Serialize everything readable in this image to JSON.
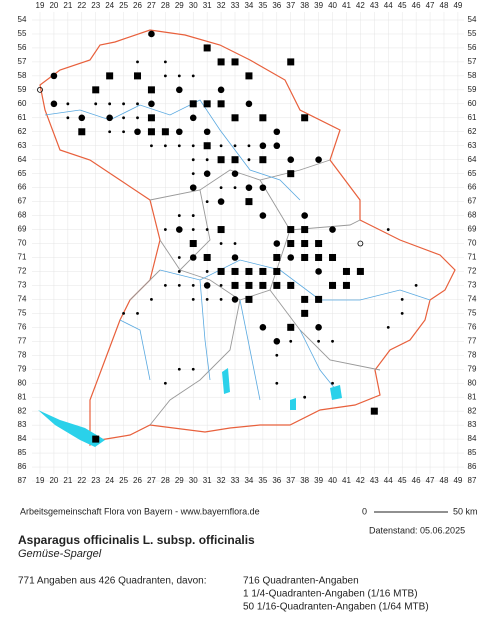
{
  "map": {
    "columns": [
      19,
      20,
      21,
      22,
      23,
      24,
      25,
      26,
      27,
      28,
      29,
      30,
      31,
      32,
      33,
      34,
      35,
      36,
      37,
      38,
      39,
      40,
      41,
      42,
      43,
      44,
      45,
      46,
      47,
      48,
      49
    ],
    "rows": [
      54,
      55,
      56,
      57,
      58,
      59,
      60,
      61,
      62,
      63,
      64,
      65,
      66,
      67,
      68,
      69,
      70,
      71,
      72,
      73,
      74,
      75,
      76,
      77,
      78,
      79,
      80,
      81,
      82,
      83,
      84,
      85,
      86,
      87
    ],
    "squares": [
      [
        31,
        56
      ],
      [
        32,
        57
      ],
      [
        33,
        57
      ],
      [
        34,
        58
      ],
      [
        37,
        57
      ],
      [
        23,
        59
      ],
      [
        24,
        58
      ],
      [
        26,
        58
      ],
      [
        27,
        59
      ],
      [
        28,
        62
      ],
      [
        30,
        60
      ],
      [
        31,
        60
      ],
      [
        32,
        60
      ],
      [
        33,
        61
      ],
      [
        35,
        61
      ],
      [
        38,
        61
      ],
      [
        22,
        62
      ],
      [
        27,
        61
      ],
      [
        27,
        62
      ],
      [
        31,
        63
      ],
      [
        32,
        64
      ],
      [
        33,
        64
      ],
      [
        35,
        64
      ],
      [
        37,
        65
      ],
      [
        34,
        67
      ],
      [
        32,
        69
      ],
      [
        37,
        69
      ],
      [
        38,
        69
      ],
      [
        37,
        70
      ],
      [
        38,
        70
      ],
      [
        39,
        70
      ],
      [
        38,
        71
      ],
      [
        39,
        71
      ],
      [
        40,
        71
      ],
      [
        36,
        71
      ],
      [
        33,
        72
      ],
      [
        34,
        72
      ],
      [
        35,
        72
      ],
      [
        36,
        72
      ],
      [
        33,
        73
      ],
      [
        34,
        73
      ],
      [
        35,
        73
      ],
      [
        34,
        74
      ],
      [
        36,
        73
      ],
      [
        37,
        73
      ],
      [
        40,
        73
      ],
      [
        41,
        73
      ],
      [
        42,
        72
      ],
      [
        38,
        74
      ],
      [
        39,
        74
      ],
      [
        38,
        75
      ],
      [
        37,
        76
      ],
      [
        43,
        82
      ],
      [
        23,
        84
      ],
      [
        41,
        72
      ],
      [
        30,
        70
      ],
      [
        31,
        71
      ],
      [
        32,
        72
      ]
    ],
    "dots": [
      [
        27,
        55
      ],
      [
        20,
        58
      ],
      [
        20,
        60
      ],
      [
        22,
        61
      ],
      [
        29,
        59
      ],
      [
        29,
        62
      ],
      [
        26,
        62
      ],
      [
        27,
        60
      ],
      [
        24,
        61
      ],
      [
        30,
        61
      ],
      [
        31,
        62
      ],
      [
        32,
        59
      ],
      [
        34,
        60
      ],
      [
        35,
        63
      ],
      [
        36,
        62
      ],
      [
        31,
        65
      ],
      [
        33,
        65
      ],
      [
        34,
        66
      ],
      [
        35,
        66
      ],
      [
        36,
        63
      ],
      [
        37,
        64
      ],
      [
        39,
        64
      ],
      [
        30,
        66
      ],
      [
        32,
        67
      ],
      [
        35,
        68
      ],
      [
        38,
        68
      ],
      [
        36,
        70
      ],
      [
        30,
        71
      ],
      [
        31,
        73
      ],
      [
        33,
        71
      ],
      [
        37,
        71
      ],
      [
        40,
        69
      ],
      [
        41,
        72
      ],
      [
        39,
        72
      ],
      [
        36,
        77
      ],
      [
        35,
        76
      ],
      [
        33,
        74
      ],
      [
        29,
        69
      ],
      [
        39,
        76
      ]
    ],
    "small_dots": [
      [
        26,
        57
      ],
      [
        28,
        57
      ],
      [
        28,
        58
      ],
      [
        29,
        58
      ],
      [
        30,
        58
      ],
      [
        21,
        60
      ],
      [
        21,
        61
      ],
      [
        22,
        62
      ],
      [
        23,
        60
      ],
      [
        24,
        60
      ],
      [
        24,
        62
      ],
      [
        25,
        60
      ],
      [
        25,
        61
      ],
      [
        25,
        62
      ],
      [
        26,
        60
      ],
      [
        26,
        61
      ],
      [
        27,
        63
      ],
      [
        28,
        63
      ],
      [
        29,
        63
      ],
      [
        30,
        63
      ],
      [
        30,
        64
      ],
      [
        30,
        65
      ],
      [
        31,
        64
      ],
      [
        32,
        63
      ],
      [
        33,
        63
      ],
      [
        34,
        63
      ],
      [
        34,
        64
      ],
      [
        33,
        66
      ],
      [
        32,
        66
      ],
      [
        31,
        67
      ],
      [
        30,
        68
      ],
      [
        29,
        68
      ],
      [
        28,
        69
      ],
      [
        30,
        69
      ],
      [
        31,
        69
      ],
      [
        32,
        70
      ],
      [
        33,
        70
      ],
      [
        29,
        71
      ],
      [
        29,
        72
      ],
      [
        29,
        73
      ],
      [
        30,
        73
      ],
      [
        31,
        72
      ],
      [
        32,
        73
      ],
      [
        30,
        74
      ],
      [
        31,
        74
      ],
      [
        32,
        74
      ],
      [
        26,
        75
      ],
      [
        25,
        75
      ],
      [
        27,
        74
      ],
      [
        28,
        73
      ],
      [
        44,
        69
      ],
      [
        45,
        74
      ],
      [
        44,
        76
      ],
      [
        46,
        73
      ],
      [
        40,
        77
      ],
      [
        39,
        77
      ],
      [
        37,
        77
      ],
      [
        29,
        79
      ],
      [
        30,
        79
      ],
      [
        28,
        80
      ],
      [
        36,
        80
      ],
      [
        38,
        81
      ],
      [
        40,
        80
      ],
      [
        45,
        75
      ],
      [
        36,
        78
      ]
    ],
    "open_circles": [
      [
        19,
        59
      ],
      [
        42,
        70
      ]
    ],
    "credit": "Arbeitsgemeinschaft Flora von Bayern - www.bayernflora.de",
    "scale_start": "0",
    "scale_end": "50 km",
    "date": "Datenstand: 05.06.2025",
    "title": "Asparagus officinalis L. subsp. officinalis",
    "subtitle": "Gemüse-Spargel",
    "summary": "771 Angaben aus 426 Quadranten, davon:",
    "breakdown": [
      "716 Quadranten-Angaben",
      "1 1/4-Quadranten-Angaben (1/16 MTB)",
      "50 1/16-Quadranten-Angaben (1/64 MTB)"
    ]
  }
}
